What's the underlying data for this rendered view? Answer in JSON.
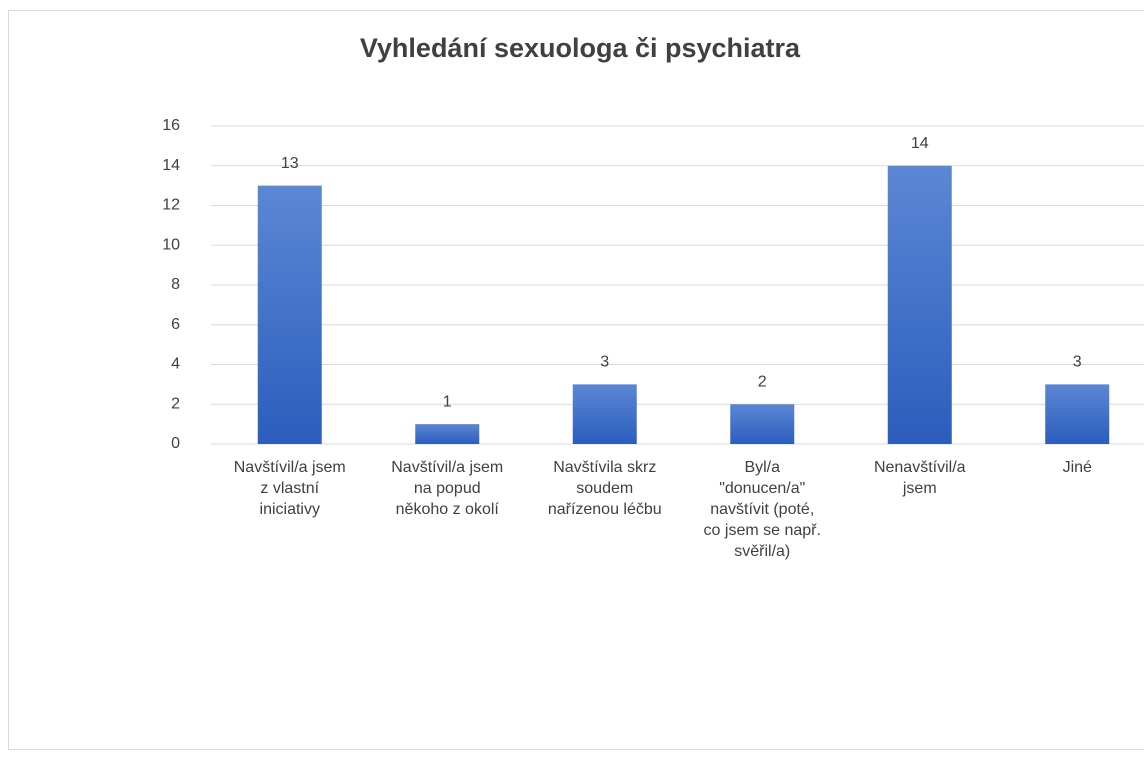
{
  "chart_data": {
    "type": "bar",
    "title": "Vyhledání sexuologa či psychiatra",
    "categories": [
      "Navštívil/a jsem\nz vlastní\niniciativy",
      "Navštívil/a jsem\nna popud\nněkoho z okolí",
      "Navštívila skrz\nsoudem\nnařízenou léčbu",
      "Byl/a\n\"donucen/a\"\nnavštívit (poté,\nco jsem se např.\nsvěřil/a)",
      "Nenavštívil/a\njsem",
      "Jiné"
    ],
    "values": [
      13,
      1,
      3,
      2,
      14,
      3
    ],
    "color": "#3a6cc9",
    "ylim": [
      0,
      16
    ],
    "yticks": [
      0,
      2,
      4,
      6,
      8,
      10,
      12,
      14,
      16
    ],
    "grid": true
  }
}
